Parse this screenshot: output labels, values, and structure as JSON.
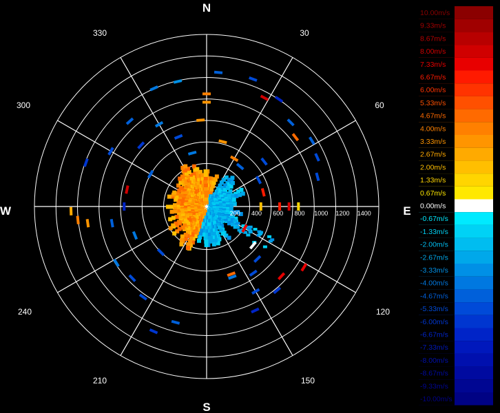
{
  "chart_data": {
    "type": "polar-scatter",
    "cardinals": [
      "N",
      "E",
      "S",
      "W"
    ],
    "angle_labels": [
      "30",
      "60",
      "120",
      "150",
      "210",
      "240",
      "300",
      "330"
    ],
    "range_rings": [
      "200",
      "400",
      "600",
      "800",
      "1000",
      "1200",
      "1400"
    ],
    "range_max": 1400,
    "legend": [
      {
        "label": "10.00m/s",
        "color": "#8b0000"
      },
      {
        "label": "9.33m/s",
        "color": "#a00000"
      },
      {
        "label": "8.67m/s",
        "color": "#b80000"
      },
      {
        "label": "8.00m/s",
        "color": "#d00000"
      },
      {
        "label": "7.33m/s",
        "color": "#e80000"
      },
      {
        "label": "6.67m/s",
        "color": "#ff1a00"
      },
      {
        "label": "6.00m/s",
        "color": "#ff3300"
      },
      {
        "label": "5.33m/s",
        "color": "#ff5000"
      },
      {
        "label": "4.67m/s",
        "color": "#ff6a00"
      },
      {
        "label": "4.00m/s",
        "color": "#ff8000"
      },
      {
        "label": "3.33m/s",
        "color": "#ff9500"
      },
      {
        "label": "2.67m/s",
        "color": "#ffaa00"
      },
      {
        "label": "2.00m/s",
        "color": "#ffbf00"
      },
      {
        "label": "1.33m/s",
        "color": "#ffd500"
      },
      {
        "label": "0.67m/s",
        "color": "#ffe800"
      },
      {
        "label": "0.00m/s",
        "color": "#ffffff"
      },
      {
        "label": "-0.67m/s",
        "color": "#00eaff"
      },
      {
        "label": "-1.33m/s",
        "color": "#00d2f5"
      },
      {
        "label": "-2.00m/s",
        "color": "#00bdf0"
      },
      {
        "label": "-2.67m/s",
        "color": "#00a8ea"
      },
      {
        "label": "-3.33m/s",
        "color": "#0090e6"
      },
      {
        "label": "-4.00m/s",
        "color": "#0078e0"
      },
      {
        "label": "-4.67m/s",
        "color": "#0060da"
      },
      {
        "label": "-5.33m/s",
        "color": "#004ad8"
      },
      {
        "label": "-6.00m/s",
        "color": "#0036d0"
      },
      {
        "label": "-6.67m/s",
        "color": "#0024c8"
      },
      {
        "label": "-7.33m/s",
        "color": "#0018bc"
      },
      {
        "label": "-8.00m/s",
        "color": "#0010ae"
      },
      {
        "label": "-8.67m/s",
        "color": "#000aa0"
      },
      {
        "label": "-9.33m/s",
        "color": "#000692"
      },
      {
        "label": "-10.00m/s",
        "color": "#000284"
      }
    ],
    "returns": [
      {
        "az": 0,
        "range": 1080,
        "v": 4.0
      },
      {
        "az": 0,
        "range": 1000,
        "v": 3.33
      },
      {
        "az": 356,
        "range": 830,
        "v": 3.33
      },
      {
        "az": 5,
        "range": 1290,
        "v": -4.67
      },
      {
        "az": 20,
        "range": 1300,
        "v": -5.33
      },
      {
        "az": 28,
        "range": 1180,
        "v": 8.0
      },
      {
        "az": 34,
        "range": 1240,
        "v": -6.67
      },
      {
        "az": 45,
        "range": 1140,
        "v": -4.67
      },
      {
        "az": 52,
        "range": 1080,
        "v": 4.67
      },
      {
        "az": 58,
        "range": 1190,
        "v": -4.67
      },
      {
        "az": 66,
        "range": 1160,
        "v": -5.33
      },
      {
        "az": 75,
        "range": 1100,
        "v": -5.33
      },
      {
        "az": 52,
        "range": 700,
        "v": -5.33
      },
      {
        "az": 30,
        "range": 530,
        "v": 4.0
      },
      {
        "az": 14,
        "range": 640,
        "v": 3.33
      },
      {
        "az": 40,
        "range": 500,
        "v": -4.67
      },
      {
        "az": 63,
        "range": 560,
        "v": -5.33
      },
      {
        "az": 76,
        "range": 560,
        "v": 6.67
      },
      {
        "az": 90,
        "range": 520,
        "v": 2.0
      },
      {
        "az": 90,
        "range": 700,
        "v": 6.67
      },
      {
        "az": 90,
        "range": 790,
        "v": 8.0
      },
      {
        "az": 90,
        "range": 880,
        "v": 1.33
      },
      {
        "az": 120,
        "range": 420,
        "v": 7.33
      },
      {
        "az": 130,
        "range": 580,
        "v": 0.0
      },
      {
        "az": 136,
        "range": 700,
        "v": -5.33
      },
      {
        "az": 145,
        "range": 780,
        "v": -5.33
      },
      {
        "az": 133,
        "range": 980,
        "v": 7.33
      },
      {
        "az": 122,
        "range": 1100,
        "v": 7.33
      },
      {
        "az": 140,
        "range": 1050,
        "v": -6.0
      },
      {
        "az": 150,
        "range": 940,
        "v": -5.33
      },
      {
        "az": 155,
        "range": 1100,
        "v": -6.67
      },
      {
        "az": 160,
        "range": 690,
        "v": 4.67
      },
      {
        "az": 160,
        "range": 720,
        "v": -4.0
      },
      {
        "az": 195,
        "range": 1150,
        "v": -4.67
      },
      {
        "az": 203,
        "range": 1300,
        "v": -6.0
      },
      {
        "az": 215,
        "range": 1060,
        "v": -5.33
      },
      {
        "az": 226,
        "range": 990,
        "v": -5.33
      },
      {
        "az": 238,
        "range": 1020,
        "v": -4.0
      },
      {
        "az": 248,
        "range": 740,
        "v": -4.0
      },
      {
        "az": 260,
        "range": 920,
        "v": -4.67
      },
      {
        "az": 262,
        "range": 1150,
        "v": 3.33
      },
      {
        "az": 264,
        "range": 1240,
        "v": 4.0
      },
      {
        "az": 268,
        "range": 1300,
        "v": 2.67
      },
      {
        "az": 270,
        "range": 790,
        "v": -6.67
      },
      {
        "az": 282,
        "range": 780,
        "v": 8.0
      },
      {
        "az": 290,
        "range": 1230,
        "v": -6.0
      },
      {
        "az": 300,
        "range": 1060,
        "v": -5.33
      },
      {
        "az": 313,
        "range": 860,
        "v": -6.0
      },
      {
        "az": 318,
        "range": 1100,
        "v": -4.67
      },
      {
        "az": 330,
        "range": 910,
        "v": -4.0
      },
      {
        "az": 336,
        "range": 1240,
        "v": -4.0
      },
      {
        "az": 338,
        "range": 720,
        "v": -5.33
      },
      {
        "az": 345,
        "range": 530,
        "v": -4.0
      },
      {
        "az": 347,
        "range": 1230,
        "v": -3.33
      },
      {
        "az": 300,
        "range": 620,
        "v": -4.67
      },
      {
        "az": 225,
        "range": 620,
        "v": -5.33
      }
    ]
  }
}
